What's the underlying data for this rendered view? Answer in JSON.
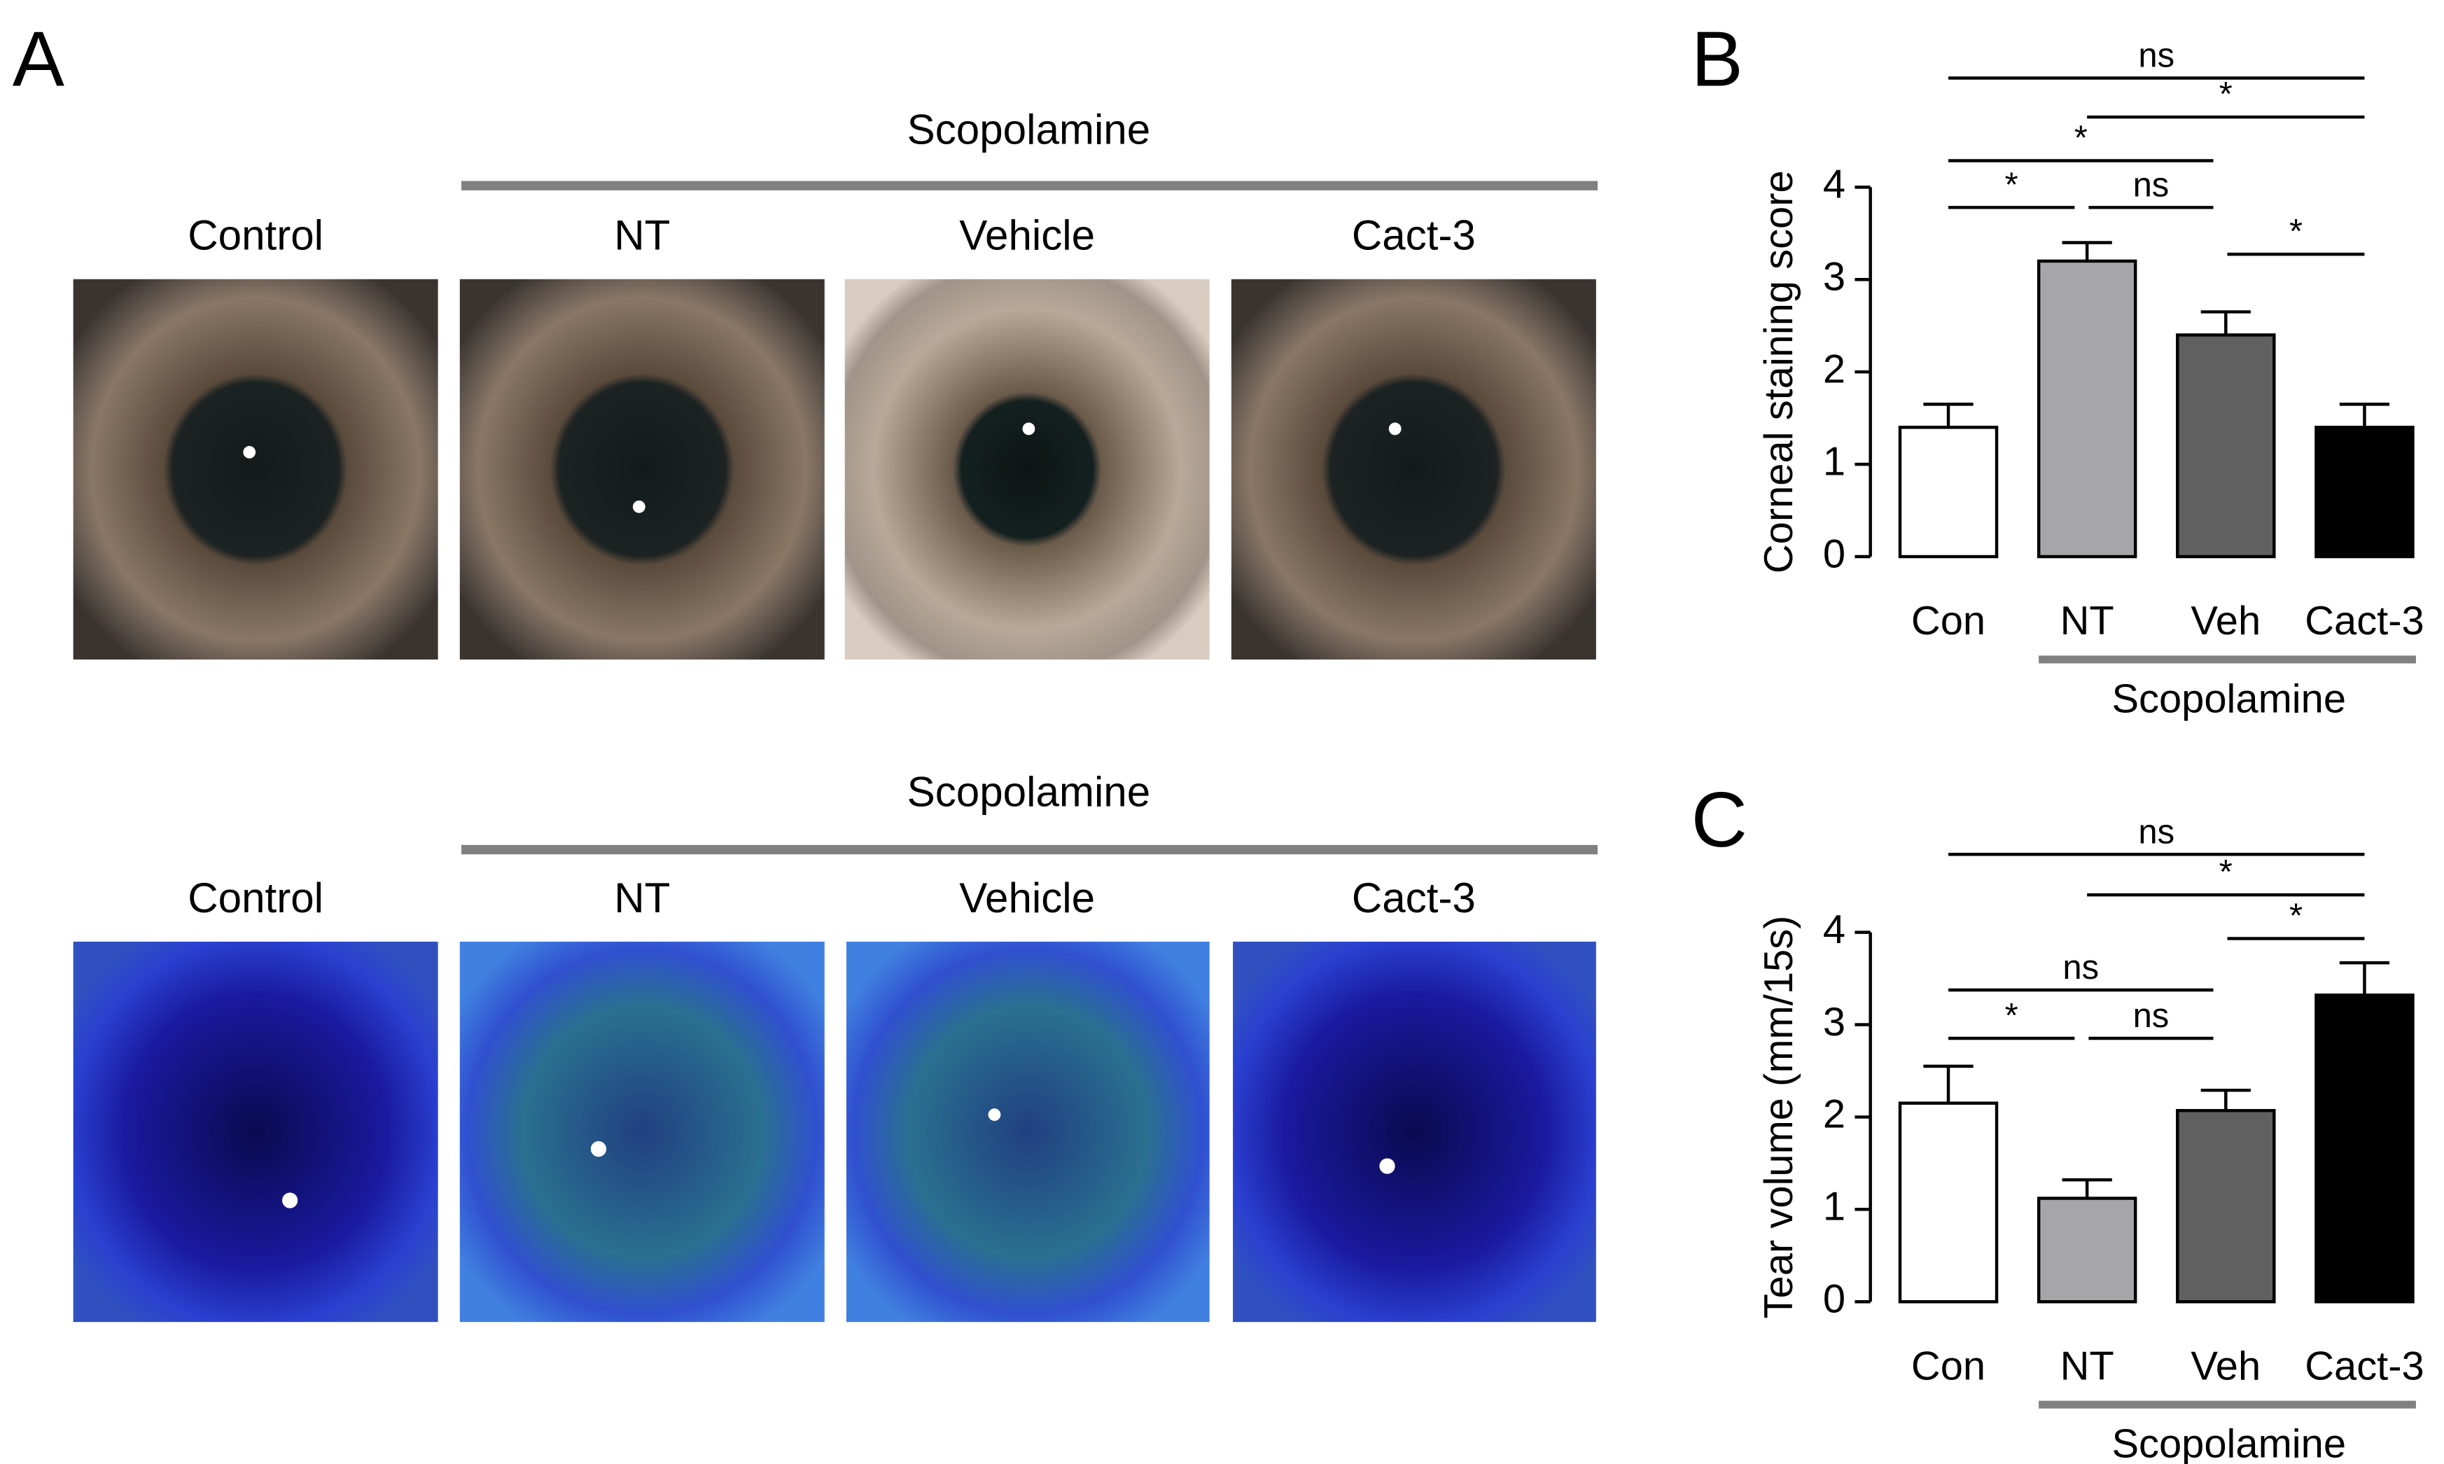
{
  "panel_a": {
    "label": "A",
    "rows": [
      {
        "group_label": "Scopolamine",
        "columns": [
          "Control",
          "NT",
          "Vehicle",
          "Cact-3"
        ]
      },
      {
        "group_label": "Scopolamine",
        "columns": [
          "Control",
          "NT",
          "Vehicle",
          "Cact-3"
        ]
      }
    ]
  },
  "chart_data": [
    {
      "type": "bar",
      "panel_label": "B",
      "ylabel": "Corneal staining score",
      "categories": [
        "Con",
        "NT",
        "Veh",
        "Cact-3"
      ],
      "values": [
        1.4,
        3.2,
        2.4,
        1.4
      ],
      "errors": [
        0.25,
        0.2,
        0.25,
        0.25
      ],
      "colors": [
        "#ffffff",
        "#a6a6a8",
        "#606060",
        "#000000"
      ],
      "ylim": [
        0,
        4
      ],
      "yticks": [
        0,
        1,
        2,
        3,
        4
      ],
      "group_label": "Scopolamine",
      "significance": [
        {
          "from": 0,
          "to": 3,
          "label": "ns"
        },
        {
          "from": 1,
          "to": 3,
          "label": "*"
        },
        {
          "from": 0,
          "to": 2,
          "label": "*"
        },
        {
          "from": 0,
          "to": 1,
          "label": "*"
        },
        {
          "from": 1,
          "to": 2,
          "label": "ns"
        },
        {
          "from": 2,
          "to": 3,
          "label": "*"
        }
      ]
    },
    {
      "type": "bar",
      "panel_label": "C",
      "ylabel": "Tear volume (mm/15s)",
      "categories": [
        "Con",
        "NT",
        "Veh",
        "Cact-3"
      ],
      "values": [
        2.15,
        1.12,
        2.07,
        3.32
      ],
      "errors": [
        0.4,
        0.2,
        0.22,
        0.35
      ],
      "colors": [
        "#ffffff",
        "#a6a6a8",
        "#606060",
        "#000000"
      ],
      "ylim": [
        0,
        4
      ],
      "yticks": [
        0,
        1,
        2,
        3,
        4
      ],
      "group_label": "Scopolamine",
      "significance": [
        {
          "from": 0,
          "to": 3,
          "label": "ns"
        },
        {
          "from": 1,
          "to": 3,
          "label": "*"
        },
        {
          "from": 2,
          "to": 3,
          "label": "*"
        },
        {
          "from": 0,
          "to": 2,
          "label": "ns"
        },
        {
          "from": 0,
          "to": 1,
          "label": "*"
        },
        {
          "from": 1,
          "to": 2,
          "label": "ns"
        }
      ]
    }
  ]
}
